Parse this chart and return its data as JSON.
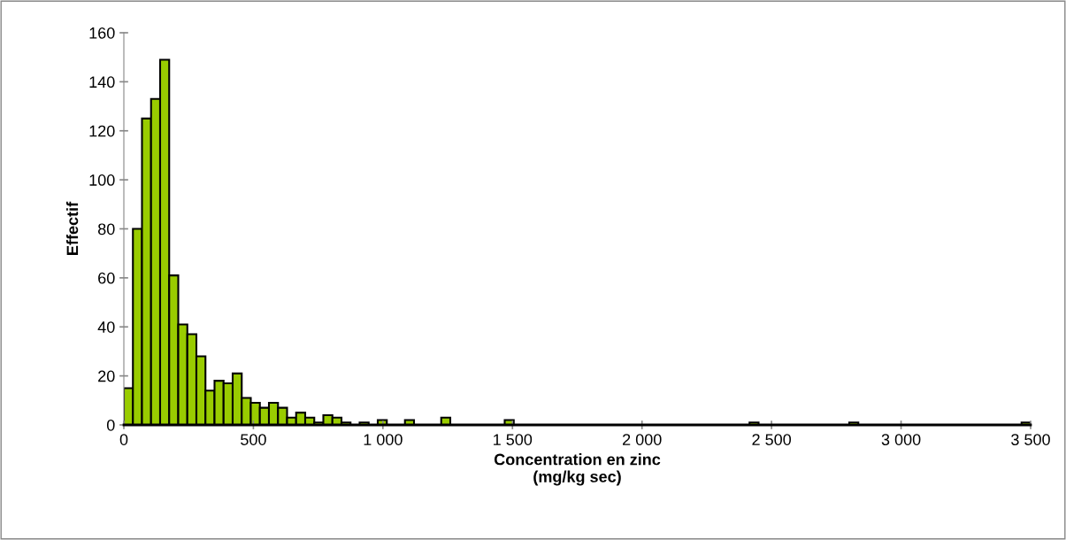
{
  "chart_data": {
    "type": "histogram",
    "xlabel": "Concentration en zinc\n(mg/kg sec)",
    "ylabel": "Effectif",
    "color": "#99cc00",
    "bins": [
      0,
      35,
      70,
      105,
      140,
      175,
      210,
      245,
      280,
      315,
      350,
      385,
      420,
      455,
      490,
      525,
      560,
      595,
      630,
      665,
      700,
      735,
      770,
      805,
      840,
      875,
      910,
      945,
      980,
      1015,
      1050,
      1085,
      1120,
      1155,
      1190,
      1225,
      1260,
      1295,
      1330,
      1365,
      1400,
      1435,
      1470,
      1505,
      1540,
      1575,
      1610,
      1645,
      1680,
      1715,
      1750,
      1785,
      1820,
      1855,
      1890,
      1925,
      1960,
      1995,
      2030,
      2065,
      2100,
      2135,
      2170,
      2205,
      2240,
      2275,
      2310,
      2345,
      2380,
      2415,
      2450,
      2485,
      2520,
      2555,
      2590,
      2625,
      2660,
      2695,
      2730,
      2765,
      2800,
      2835,
      2870,
      2905,
      2940,
      2975,
      3010,
      3045,
      3080,
      3115,
      3150,
      3185,
      3220,
      3255,
      3290,
      3325,
      3360,
      3395,
      3430,
      3465,
      3500
    ],
    "values": [
      15,
      80,
      125,
      133,
      149,
      61,
      41,
      37,
      28,
      14,
      18,
      17,
      21,
      11,
      9,
      7,
      9,
      7,
      3,
      5,
      3,
      1,
      4,
      3,
      1,
      0,
      1,
      0,
      2,
      0,
      0,
      2,
      0,
      0,
      0,
      3,
      0,
      0,
      0,
      0,
      0,
      0,
      2,
      0,
      0,
      0,
      0,
      0,
      0,
      0,
      0,
      0,
      0,
      0,
      0,
      0,
      0,
      0,
      0,
      0,
      0,
      0,
      0,
      0,
      0,
      0,
      0,
      0,
      0,
      1,
      0,
      0,
      0,
      0,
      0,
      0,
      0,
      0,
      0,
      0,
      1,
      0,
      0,
      0,
      0,
      0,
      0,
      0,
      0,
      0,
      0,
      0,
      0,
      0,
      0,
      0,
      0,
      0,
      0,
      1
    ],
    "xlim": [
      0,
      3500
    ],
    "xticks": [
      0,
      500,
      {
        "value": 1000,
        "label": "1 000"
      },
      {
        "value": 1500,
        "label": "1 500"
      },
      {
        "value": 2000,
        "label": "2 000"
      },
      {
        "value": 2500,
        "label": "2 500"
      },
      {
        "value": 3000,
        "label": "3 000"
      },
      {
        "value": 3500,
        "label": "3 500"
      }
    ],
    "ylim": [
      0,
      160
    ],
    "yticks": [
      0,
      20,
      40,
      60,
      80,
      100,
      120,
      140,
      160
    ],
    "grid": false,
    "legend": false
  }
}
